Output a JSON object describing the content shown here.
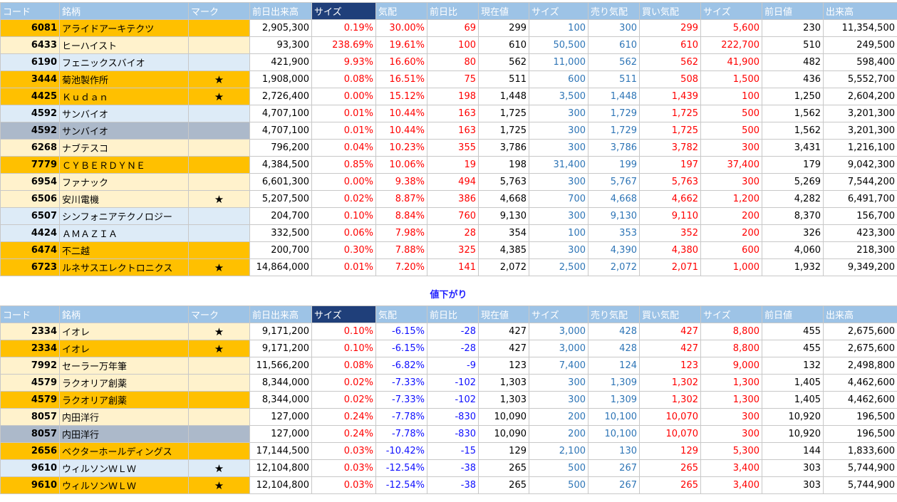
{
  "headers": [
    "コード",
    "銘柄",
    "マーク",
    "前日出来高",
    "サイズ",
    "気配",
    "前日比",
    "現在値",
    "サイズ",
    "売り気配",
    "買い気配",
    "サイズ",
    "前日値",
    "出来高"
  ],
  "section_label": "値下がり",
  "colors": {
    "orange": "#ffc000",
    "cream": "#fff2cc",
    "blue": "#ddebf7",
    "gray": "#acb9ca",
    "header_light": "#9dc3e6",
    "header_dark": "#1f3f7a"
  },
  "up": [
    {
      "code": "6081",
      "name": "アライドアーキテクツ",
      "mark": "",
      "bg": "orange",
      "cells": [
        "2,905,300",
        "0.19%",
        "30.00%",
        "69",
        "299",
        "100",
        "300",
        "299",
        "5,600",
        "230",
        "11,354,500"
      ]
    },
    {
      "code": "6433",
      "name": "ヒーハイスト",
      "mark": "",
      "bg": "cream",
      "cells": [
        "93,300",
        "238.69%",
        "19.61%",
        "100",
        "610",
        "50,500",
        "610",
        "610",
        "222,700",
        "510",
        "249,500"
      ]
    },
    {
      "code": "6190",
      "name": "フェニックスバイオ",
      "mark": "",
      "bg": "blue",
      "cells": [
        "421,900",
        "9.93%",
        "16.60%",
        "80",
        "562",
        "11,000",
        "562",
        "562",
        "41,900",
        "482",
        "598,400"
      ]
    },
    {
      "code": "3444",
      "name": "菊池製作所",
      "mark": "★",
      "bg": "orange",
      "cells": [
        "1,908,000",
        "0.08%",
        "16.51%",
        "75",
        "511",
        "600",
        "511",
        "508",
        "1,500",
        "436",
        "5,552,700"
      ]
    },
    {
      "code": "4425",
      "name": "Ｋｕｄａｎ",
      "mark": "★",
      "bg": "orange",
      "cells": [
        "2,726,400",
        "0.00%",
        "15.12%",
        "198",
        "1,448",
        "3,500",
        "1,448",
        "1,439",
        "100",
        "1,250",
        "2,604,200"
      ]
    },
    {
      "code": "4592",
      "name": "サンバイオ",
      "mark": "",
      "bg": "blue",
      "cells": [
        "4,707,100",
        "0.01%",
        "10.44%",
        "163",
        "1,725",
        "300",
        "1,729",
        "1,725",
        "500",
        "1,562",
        "3,201,300"
      ]
    },
    {
      "code": "4592",
      "name": "サンバイオ",
      "mark": "",
      "bg": "gray",
      "cells": [
        "4,707,100",
        "0.01%",
        "10.44%",
        "163",
        "1,725",
        "300",
        "1,729",
        "1,725",
        "500",
        "1,562",
        "3,201,300"
      ]
    },
    {
      "code": "6268",
      "name": "ナブテスコ",
      "mark": "",
      "bg": "cream",
      "cells": [
        "796,200",
        "0.04%",
        "10.23%",
        "355",
        "3,786",
        "300",
        "3,786",
        "3,782",
        "300",
        "3,431",
        "1,216,100"
      ]
    },
    {
      "code": "7779",
      "name": "ＣＹＢＥＲＤＹＮＥ",
      "mark": "",
      "bg": "orange",
      "cells": [
        "4,384,500",
        "0.85%",
        "10.06%",
        "19",
        "198",
        "31,400",
        "199",
        "197",
        "37,400",
        "179",
        "9,042,300"
      ]
    },
    {
      "code": "6954",
      "name": "ファナック",
      "mark": "",
      "bg": "cream",
      "cells": [
        "6,601,300",
        "0.00%",
        "9.38%",
        "494",
        "5,763",
        "300",
        "5,767",
        "5,763",
        "300",
        "5,269",
        "7,544,200"
      ]
    },
    {
      "code": "6506",
      "name": "安川電機",
      "mark": "★",
      "bg": "cream",
      "cells": [
        "5,207,500",
        "0.02%",
        "8.87%",
        "386",
        "4,668",
        "700",
        "4,668",
        "4,662",
        "1,200",
        "4,282",
        "6,491,700"
      ]
    },
    {
      "code": "6507",
      "name": "シンフォニアテクノロジー",
      "mark": "",
      "bg": "blue",
      "cells": [
        "204,700",
        "0.10%",
        "8.84%",
        "760",
        "9,130",
        "300",
        "9,130",
        "9,110",
        "200",
        "8,370",
        "156,700"
      ]
    },
    {
      "code": "4424",
      "name": "ＡＭＡＺＩＡ",
      "mark": "",
      "bg": "blue",
      "cells": [
        "332,500",
        "0.06%",
        "7.98%",
        "28",
        "354",
        "100",
        "353",
        "352",
        "200",
        "326",
        "423,300"
      ]
    },
    {
      "code": "6474",
      "name": "不二越",
      "mark": "",
      "bg": "orange",
      "cells": [
        "200,700",
        "0.30%",
        "7.88%",
        "325",
        "4,385",
        "300",
        "4,390",
        "4,380",
        "600",
        "4,060",
        "218,300"
      ]
    },
    {
      "code": "6723",
      "name": "ルネサスエレクトロニクス",
      "mark": "★",
      "bg": "orange",
      "cells": [
        "14,864,000",
        "0.01%",
        "7.20%",
        "141",
        "2,072",
        "2,500",
        "2,072",
        "2,071",
        "1,000",
        "1,932",
        "9,349,200"
      ]
    }
  ],
  "down": [
    {
      "code": "2334",
      "name": "イオレ",
      "mark": "★",
      "bg": "cream",
      "cells": [
        "9,171,200",
        "0.10%",
        "-6.15%",
        "-28",
        "427",
        "3,000",
        "428",
        "427",
        "8,800",
        "455",
        "2,675,600"
      ]
    },
    {
      "code": "2334",
      "name": "イオレ",
      "mark": "★",
      "bg": "orange",
      "cells": [
        "9,171,200",
        "0.10%",
        "-6.15%",
        "-28",
        "427",
        "3,000",
        "428",
        "427",
        "8,800",
        "455",
        "2,675,600"
      ]
    },
    {
      "code": "7992",
      "name": "セーラー万年筆",
      "mark": "",
      "bg": "cream",
      "cells": [
        "11,566,200",
        "0.08%",
        "-6.82%",
        "-9",
        "123",
        "7,400",
        "124",
        "123",
        "9,000",
        "132",
        "2,498,800"
      ]
    },
    {
      "code": "4579",
      "name": "ラクオリア創薬",
      "mark": "",
      "bg": "cream",
      "cells": [
        "8,344,000",
        "0.02%",
        "-7.33%",
        "-102",
        "1,303",
        "300",
        "1,309",
        "1,302",
        "1,300",
        "1,405",
        "4,462,600"
      ]
    },
    {
      "code": "4579",
      "name": "ラクオリア創薬",
      "mark": "",
      "bg": "orange",
      "cells": [
        "8,344,000",
        "0.02%",
        "-7.33%",
        "-102",
        "1,303",
        "300",
        "1,309",
        "1,302",
        "1,300",
        "1,405",
        "4,462,600"
      ]
    },
    {
      "code": "8057",
      "name": "内田洋行",
      "mark": "",
      "bg": "cream",
      "cells": [
        "127,000",
        "0.24%",
        "-7.78%",
        "-830",
        "10,090",
        "200",
        "10,100",
        "10,070",
        "300",
        "10,920",
        "196,500"
      ]
    },
    {
      "code": "8057",
      "name": "内田洋行",
      "mark": "",
      "bg": "gray",
      "cells": [
        "127,000",
        "0.24%",
        "-7.78%",
        "-830",
        "10,090",
        "200",
        "10,100",
        "10,070",
        "300",
        "10,920",
        "196,500"
      ]
    },
    {
      "code": "2656",
      "name": "ベクターホールディングス",
      "mark": "",
      "bg": "orange",
      "cells": [
        "17,144,500",
        "0.03%",
        "-10.42%",
        "-15",
        "129",
        "2,100",
        "130",
        "129",
        "5,300",
        "144",
        "1,833,600"
      ]
    },
    {
      "code": "9610",
      "name": "ウィルソンＷＬＷ",
      "mark": "★",
      "bg": "blue",
      "cells": [
        "12,104,800",
        "0.03%",
        "-12.54%",
        "-38",
        "265",
        "500",
        "267",
        "265",
        "3,400",
        "303",
        "5,744,900"
      ]
    },
    {
      "code": "9610",
      "name": "ウィルソンＷＬＷ",
      "mark": "★",
      "bg": "orange",
      "cells": [
        "12,104,800",
        "0.03%",
        "-12.54%",
        "-38",
        "265",
        "500",
        "267",
        "265",
        "3,400",
        "303",
        "5,744,900"
      ]
    }
  ]
}
